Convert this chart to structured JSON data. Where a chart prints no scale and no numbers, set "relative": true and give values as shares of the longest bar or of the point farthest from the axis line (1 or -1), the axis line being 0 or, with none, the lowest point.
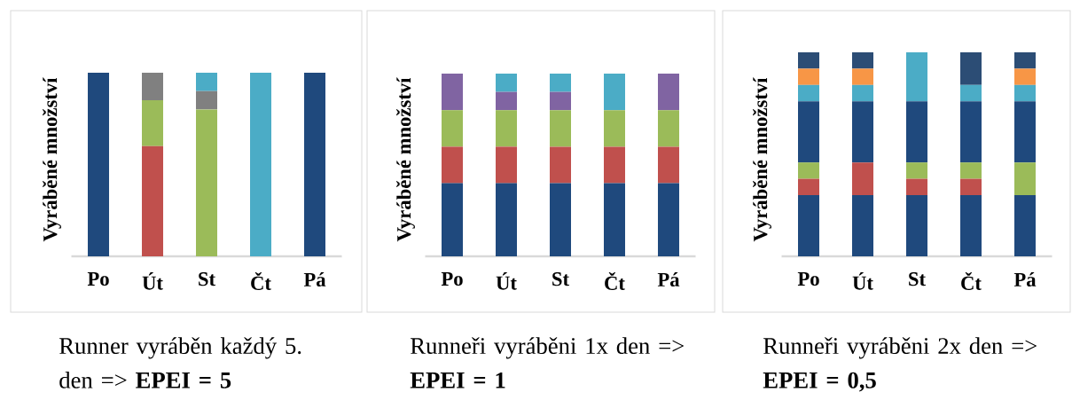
{
  "chart_data": [
    {
      "type": "bar",
      "stacked": true,
      "relative": true,
      "ylabel": "Vyráběné množství",
      "categories": [
        "Po",
        "Út",
        "St",
        "Čt",
        "Pá"
      ],
      "series": [
        {
          "color": "#1f497d",
          "values": [
            1,
            null,
            null,
            null,
            1
          ]
        },
        {
          "color": "#c0504d",
          "values": [
            null,
            0.6,
            null,
            null,
            null
          ]
        },
        {
          "color": "#9bbb59",
          "values": [
            null,
            0.25,
            0.8,
            null,
            null
          ]
        },
        {
          "color": "#808080",
          "values": [
            null,
            0.15,
            0.1,
            null,
            null
          ]
        },
        {
          "color": "#4bacc6",
          "values": [
            null,
            null,
            0.1,
            1,
            null
          ]
        }
      ],
      "annotations": [
        "Runner vyráběn každý 5. den => **EPEI = 5**"
      ]
    },
    {
      "type": "bar",
      "stacked": true,
      "relative": true,
      "ylabel": "Vyráběné množství",
      "categories": [
        "Po",
        "Út",
        "St",
        "Čt",
        "Pá"
      ],
      "series": [
        {
          "color": "#1f497d",
          "values": [
            0.4,
            0.4,
            0.4,
            0.4,
            0.4
          ]
        },
        {
          "color": "#c0504d",
          "values": [
            0.2,
            0.2,
            0.2,
            0.2,
            0.2
          ]
        },
        {
          "color": "#9bbb59",
          "values": [
            0.2,
            0.2,
            0.2,
            0.2,
            0.2
          ]
        },
        {
          "color": "#8064a2",
          "values": [
            0.2,
            0.1,
            0.1,
            null,
            0.2
          ]
        },
        {
          "color": "#4bacc6",
          "values": [
            null,
            0.1,
            0.1,
            0.2,
            null
          ]
        }
      ],
      "annotations": [
        "Runneři vyráběni 1x den => **EPEI = 1**"
      ]
    },
    {
      "type": "bar",
      "stacked": true,
      "relative": true,
      "ylabel": "Vyráběné množství",
      "categories": [
        "Po",
        "Út",
        "St",
        "Čt",
        "Pá"
      ],
      "series": [
        {
          "color": "#1f497d",
          "values": [
            0.3,
            0.3,
            0.3,
            0.3,
            0.3
          ]
        },
        {
          "color": "#c0504d",
          "values": [
            0.08,
            0.16,
            0.08,
            0.08,
            null
          ]
        },
        {
          "color": "#9bbb59",
          "values": [
            0.08,
            null,
            0.08,
            0.08,
            0.16
          ]
        },
        {
          "color": "#1f497d",
          "values": [
            0.3,
            0.3,
            0.3,
            0.3,
            0.3
          ]
        },
        {
          "color": "#4bacc6",
          "values": [
            0.08,
            0.08,
            0.24,
            0.08,
            0.08
          ]
        },
        {
          "color": "#f79646",
          "values": [
            0.08,
            0.08,
            null,
            null,
            0.08
          ]
        },
        {
          "color": "#2c4d75",
          "values": [
            0.08,
            0.08,
            null,
            0.16,
            0.08
          ]
        }
      ],
      "annotations": [
        "Runneři vyráběni 2x den => **EPEI = 0,5**"
      ]
    }
  ]
}
